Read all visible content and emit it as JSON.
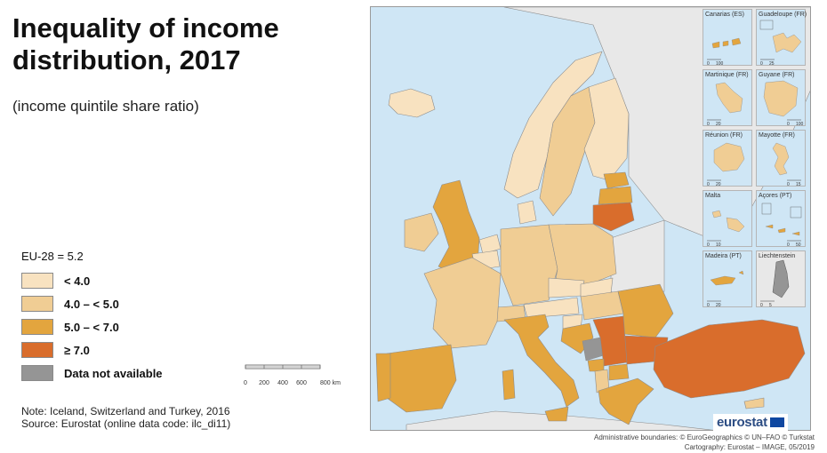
{
  "title": "Inequality of income distribution, 2017",
  "subtitle": "(income quintile share ratio)",
  "eu_average": "EU-28 = 5.2",
  "legend": [
    {
      "label": "< 4.0",
      "color": "#f8e2c0"
    },
    {
      "label": "4.0 – < 5.0",
      "color": "#f0cd94"
    },
    {
      "label": "5.0 – < 7.0",
      "color": "#e3a53e"
    },
    {
      "label": "≥ 7.0",
      "color": "#d96d2c"
    },
    {
      "label": "Data not available",
      "color": "#959595"
    }
  ],
  "note_line1": "Note: Iceland, Switzerland and Turkey, 2016",
  "note_line2": "Source: Eurostat (online data code: ilc_di11)",
  "scale": {
    "ticks": [
      "0",
      "200",
      "400",
      "600",
      "800 km"
    ]
  },
  "insets": [
    {
      "name": "Canarias (ES)",
      "scale": [
        "0",
        "100"
      ]
    },
    {
      "name": "Guadeloupe (FR)",
      "scale": [
        "0",
        "25"
      ]
    },
    {
      "name": "Martinique (FR)",
      "scale": [
        "0",
        "20"
      ]
    },
    {
      "name": "Guyane (FR)",
      "scale": [
        "0",
        "100"
      ]
    },
    {
      "name": "Réunion (FR)",
      "scale": [
        "0",
        "20"
      ]
    },
    {
      "name": "Mayotte (FR)",
      "scale": [
        "0",
        "15"
      ]
    },
    {
      "name": "Malta",
      "scale": [
        "0",
        "10"
      ]
    },
    {
      "name": "Açores (PT)",
      "scale": [
        "0",
        "50"
      ]
    },
    {
      "name": "Madeira (PT)",
      "scale": [
        "0",
        "20"
      ]
    },
    {
      "name": "Liechtenstein",
      "scale": [
        "0",
        "5"
      ]
    }
  ],
  "credits_line1": "Administrative boundaries: © EuroGeographics © UN–FAO © Turkstat",
  "credits_line2": "Cartography: Eurostat – IMAGE, 05/2019",
  "logo_text": "eurostat",
  "colors": {
    "sea": "#cfe6f5",
    "non_eu_land": "#e8e8e8",
    "border": "#8c8c8c"
  }
}
